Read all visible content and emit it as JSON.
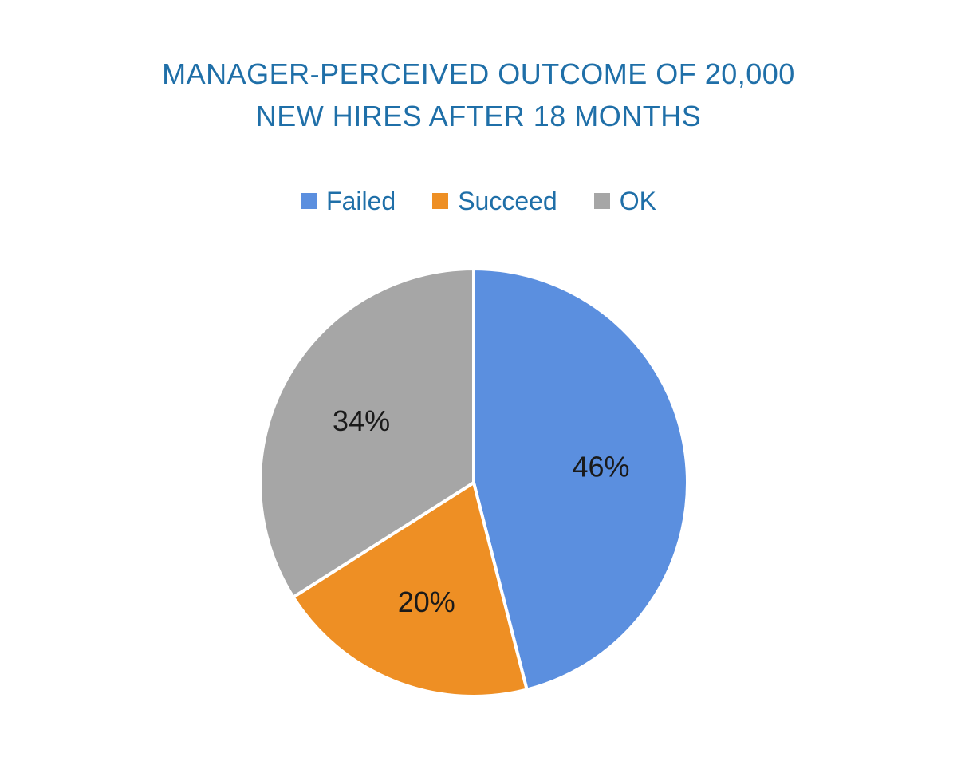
{
  "chart_data": {
    "type": "pie",
    "title": [
      "MANAGER-PERCEIVED OUTCOME OF 20,000",
      "NEW HIRES AFTER 18 MONTHS"
    ],
    "legend_position": "top",
    "series": [
      {
        "name": "Failed",
        "value": 46,
        "label": "46%",
        "color": "#5b8fdf"
      },
      {
        "name": "Succeed",
        "value": 20,
        "label": "20%",
        "color": "#ee8f24"
      },
      {
        "name": "OK",
        "value": 34,
        "label": "34%",
        "color": "#a6a6a6"
      }
    ]
  }
}
